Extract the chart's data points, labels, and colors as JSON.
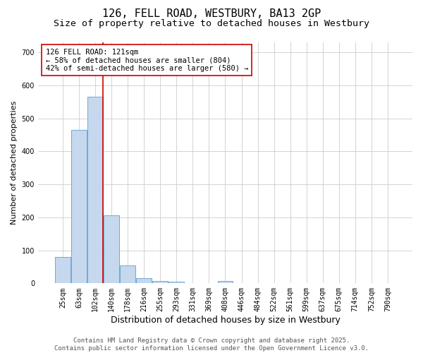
{
  "title": "126, FELL ROAD, WESTBURY, BA13 2GP",
  "subtitle": "Size of property relative to detached houses in Westbury",
  "xlabel": "Distribution of detached houses by size in Westbury",
  "ylabel": "Number of detached properties",
  "bar_color": "#c5d8ed",
  "bar_edge_color": "#5a9fd4",
  "background_color": "#ffffff",
  "grid_color": "#cccccc",
  "vline_color": "#cc0000",
  "vline_x_idx": 2,
  "annotation_line1": "126 FELL ROAD: 121sqm",
  "annotation_line2": "← 58% of detached houses are smaller (804)",
  "annotation_line3": "42% of semi-detached houses are larger (580) →",
  "annotation_box_color": "#ffffff",
  "annotation_box_edge": "#cc0000",
  "categories": [
    "25sqm",
    "63sqm",
    "102sqm",
    "140sqm",
    "178sqm",
    "216sqm",
    "255sqm",
    "293sqm",
    "331sqm",
    "369sqm",
    "408sqm",
    "446sqm",
    "484sqm",
    "522sqm",
    "561sqm",
    "599sqm",
    "637sqm",
    "675sqm",
    "714sqm",
    "752sqm",
    "790sqm"
  ],
  "values": [
    80,
    465,
    565,
    207,
    55,
    16,
    8,
    5,
    0,
    0,
    7,
    0,
    0,
    0,
    0,
    0,
    0,
    0,
    0,
    0,
    0
  ],
  "ylim": [
    0,
    730
  ],
  "yticks": [
    0,
    100,
    200,
    300,
    400,
    500,
    600,
    700
  ],
  "footer": "Contains HM Land Registry data © Crown copyright and database right 2025.\nContains public sector information licensed under the Open Government Licence v3.0.",
  "title_fontsize": 11,
  "subtitle_fontsize": 9.5,
  "xlabel_fontsize": 9,
  "ylabel_fontsize": 8,
  "tick_fontsize": 7,
  "footer_fontsize": 6.5,
  "annotation_fontsize": 7.5
}
